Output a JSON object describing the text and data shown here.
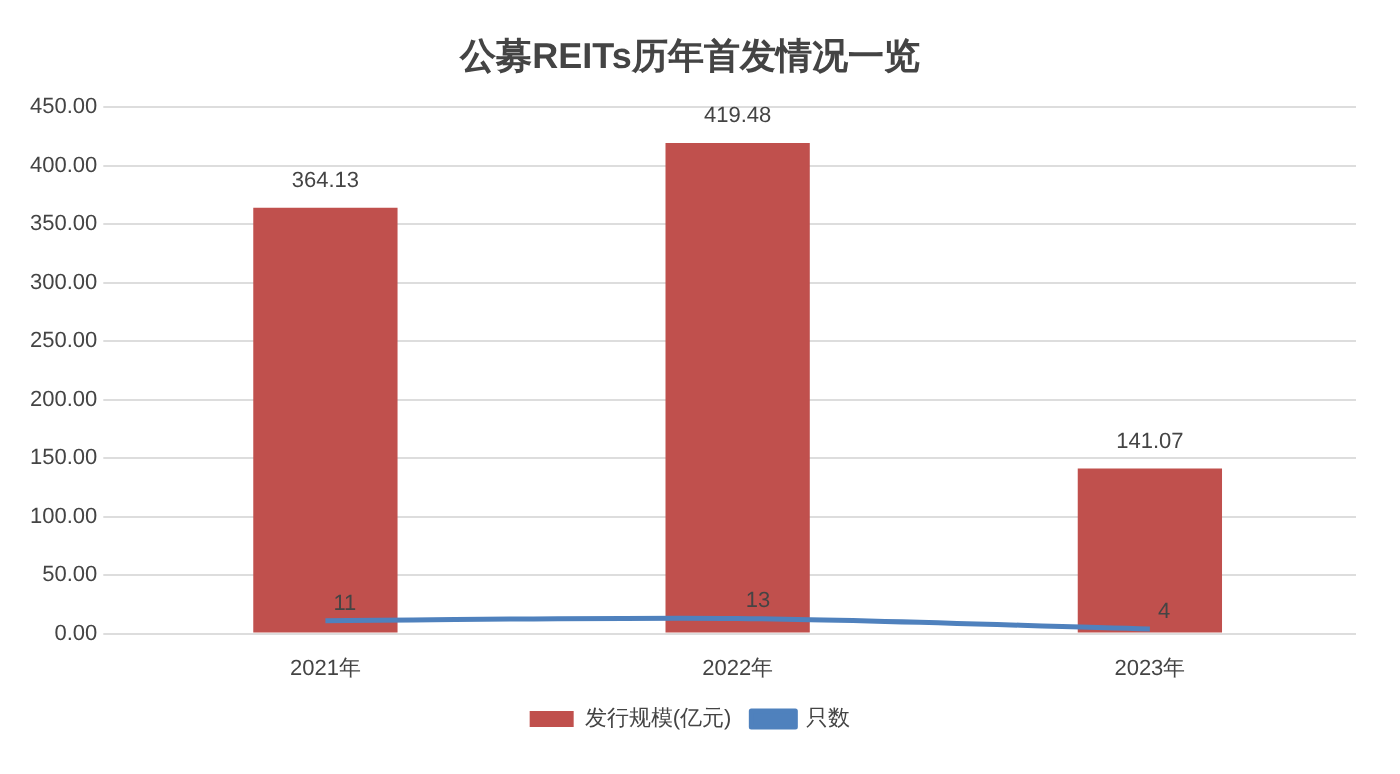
{
  "chart_data": {
    "type": "bar",
    "title": "公募REITs历年首发情况一览",
    "categories": [
      "2021年",
      "2022年",
      "2023年"
    ],
    "series": [
      {
        "name": "发行规模(亿元)",
        "color": "#c0504d",
        "values": [
          364.13,
          419.48,
          141.07
        ]
      },
      {
        "name": "只数",
        "type": "line",
        "color": "#4f81bd",
        "values": [
          11,
          13,
          4
        ]
      }
    ],
    "ylim": [
      0,
      450
    ],
    "yticks": [
      {
        "value": 0,
        "label": "0.00"
      },
      {
        "value": 50,
        "label": "50.00"
      },
      {
        "value": 100,
        "label": "100.00"
      },
      {
        "value": 150,
        "label": "150.00"
      },
      {
        "value": 200,
        "label": "200.00"
      },
      {
        "value": 250,
        "label": "250.00"
      },
      {
        "value": 300,
        "label": "300.00"
      },
      {
        "value": 350,
        "label": "350.00"
      },
      {
        "value": 400,
        "label": "400.00"
      },
      {
        "value": 450,
        "label": "450.00"
      }
    ],
    "grid": "y",
    "legend": "bottom",
    "data_labels": true,
    "marker": "none"
  }
}
